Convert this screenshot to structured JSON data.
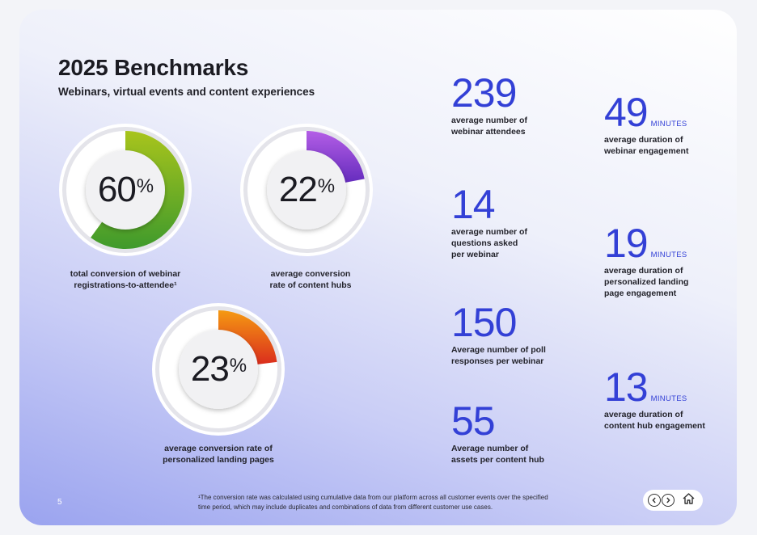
{
  "header": {
    "title": "2025 Benchmarks",
    "subtitle": "Webinars, virtual events and content experiences"
  },
  "donuts": [
    {
      "value": "60",
      "symbol": "%",
      "fraction": 0.6,
      "label": "total conversion of webinar\nregistrations-to-attendee¹",
      "color_start": "#a8c41c",
      "color_end": "#3f9a2c"
    },
    {
      "value": "22",
      "symbol": "%",
      "fraction": 0.22,
      "label": "average conversion\nrate of content hubs",
      "color_start": "#b45ee6",
      "color_end": "#5a25b8"
    },
    {
      "value": "23",
      "symbol": "%",
      "fraction": 0.23,
      "label": "average conversion rate of\npersonalized landing pages",
      "color_start": "#f59a12",
      "color_end": "#d8231e"
    }
  ],
  "stats_left": [
    {
      "number": "239",
      "desc": "average number of\nwebinar attendees"
    },
    {
      "number": "14",
      "desc": "average number of\nquestions asked\nper webinar"
    },
    {
      "number": "150",
      "desc": "Average number of poll\nresponses per webinar"
    },
    {
      "number": "55",
      "desc": "Average number of\nassets per content hub"
    }
  ],
  "stats_right": [
    {
      "number": "49",
      "unit": "MINUTES",
      "desc": "average duration of\nwebinar engagement"
    },
    {
      "number": "19",
      "unit": "MINUTES",
      "desc": "average duration of\npersonalized landing\npage engagement"
    },
    {
      "number": "13",
      "unit": "MINUTES",
      "desc": "average duration of\ncontent hub engagement"
    }
  ],
  "footer": {
    "page_number": "5",
    "footnote": "¹The conversion rate was calculated using cumulative data from our platform across all customer events over the specified time period, which may include duplicates and combinations of data from different customer use cases."
  },
  "nav": {
    "prev_icon": "chevron-left-icon",
    "next_icon": "chevron-right-icon",
    "home_icon": "home-icon"
  },
  "colors": {
    "accent": "#3340d6",
    "ring_track": "#e4e4ea"
  }
}
